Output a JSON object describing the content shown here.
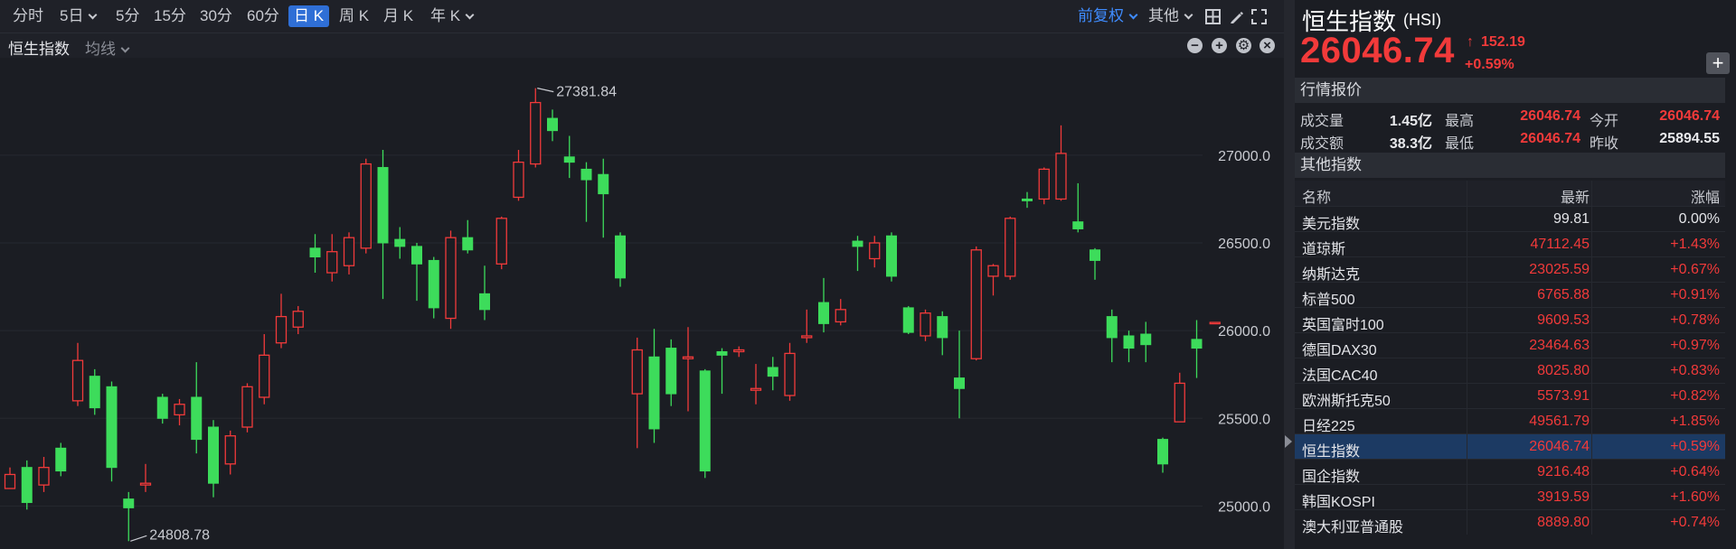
{
  "toolbar": {
    "periods": [
      "分时",
      "5日",
      "5分",
      "15分",
      "30分",
      "60分",
      "日 K",
      "周 K",
      "月 K",
      "年 K"
    ],
    "active_period": "日 K",
    "adjust": "前复权",
    "other": "其他"
  },
  "chart": {
    "title": "恒生指数",
    "ma_label": "均线"
  },
  "chart_data": {
    "type": "candlestick",
    "y_ticks": [
      "27000.0",
      "26500.0",
      "26000.0",
      "25500.0",
      "25000.0"
    ],
    "ylim": [
      24750,
      27550
    ],
    "high_annotation": "27381.84",
    "low_annotation": "24808.78",
    "last_close": 26046.74,
    "candles": [
      [
        25100,
        25180,
        25120,
        25220
      ],
      [
        25220,
        25020,
        24980,
        25260
      ],
      [
        25120,
        25220,
        25080,
        25280
      ],
      [
        25330,
        25200,
        25170,
        25360
      ],
      [
        25600,
        25830,
        25570,
        25930
      ],
      [
        25740,
        25560,
        25520,
        25780
      ],
      [
        25680,
        25220,
        25140,
        25710
      ],
      [
        25040,
        24990,
        24800,
        25080
      ],
      [
        25120,
        25130,
        25080,
        25240
      ],
      [
        25620,
        25500,
        25470,
        25640
      ],
      [
        25520,
        25580,
        25460,
        25610
      ],
      [
        25620,
        25380,
        25300,
        25820
      ],
      [
        25450,
        25130,
        25050,
        25490
      ],
      [
        25240,
        25400,
        25180,
        25430
      ],
      [
        25450,
        25680,
        25420,
        25700
      ],
      [
        25620,
        25860,
        25580,
        25980
      ],
      [
        25930,
        26080,
        25900,
        26210
      ],
      [
        26020,
        26110,
        25980,
        26140
      ],
      [
        26470,
        26420,
        26330,
        26550
      ],
      [
        26330,
        26450,
        26280,
        26550
      ],
      [
        26370,
        26530,
        26320,
        26560
      ],
      [
        26470,
        26950,
        26440,
        26980
      ],
      [
        26930,
        26500,
        26180,
        27030
      ],
      [
        26520,
        26480,
        26410,
        26590
      ],
      [
        26480,
        26380,
        26170,
        26500
      ],
      [
        26400,
        26130,
        26070,
        26420
      ],
      [
        26070,
        26530,
        26010,
        26570
      ],
      [
        26530,
        26460,
        26440,
        26630
      ],
      [
        26210,
        26120,
        26060,
        26370
      ],
      [
        26380,
        26640,
        26350,
        26650
      ],
      [
        26760,
        26960,
        26740,
        27030
      ],
      [
        26950,
        27300,
        26930,
        27382
      ],
      [
        27210,
        27140,
        27080,
        27260
      ],
      [
        26990,
        26960,
        26870,
        27110
      ],
      [
        26920,
        26860,
        26620,
        26960
      ],
      [
        26890,
        26780,
        26530,
        26980
      ],
      [
        26540,
        26300,
        26250,
        26560
      ],
      [
        25640,
        25890,
        25330,
        25960
      ],
      [
        25850,
        25440,
        25360,
        26010
      ],
      [
        25900,
        25640,
        25570,
        25950
      ],
      [
        25840,
        25850,
        25540,
        26020
      ],
      [
        25770,
        25200,
        25160,
        25780
      ],
      [
        25880,
        25860,
        25640,
        25900
      ],
      [
        25880,
        25890,
        25850,
        25910
      ],
      [
        25660,
        25670,
        25580,
        25810
      ],
      [
        25790,
        25740,
        25660,
        25850
      ],
      [
        25630,
        25870,
        25600,
        25930
      ],
      [
        25960,
        25970,
        25930,
        26120
      ],
      [
        26160,
        26040,
        25990,
        26300
      ],
      [
        26050,
        26120,
        26030,
        26180
      ],
      [
        26510,
        26480,
        26340,
        26540
      ],
      [
        26410,
        26500,
        26360,
        26540
      ],
      [
        26540,
        26310,
        26280,
        26560
      ],
      [
        26130,
        25990,
        25980,
        26140
      ],
      [
        25970,
        26100,
        25940,
        26120
      ],
      [
        26080,
        25960,
        25860,
        26110
      ],
      [
        25730,
        25670,
        25500,
        26000
      ],
      [
        25840,
        26460,
        25830,
        26480
      ],
      [
        26310,
        26370,
        26200,
        26380
      ],
      [
        26310,
        26640,
        26290,
        26650
      ],
      [
        26750,
        26740,
        26700,
        26790
      ],
      [
        26750,
        26920,
        26720,
        26930
      ],
      [
        26750,
        27010,
        26740,
        27170
      ],
      [
        26620,
        26580,
        26560,
        26840
      ],
      [
        26460,
        26400,
        26290,
        26470
      ],
      [
        26080,
        25960,
        25820,
        26120
      ],
      [
        25970,
        25900,
        25820,
        26000
      ],
      [
        25980,
        25920,
        25820,
        26050
      ],
      [
        25380,
        25240,
        25190,
        25390
      ],
      [
        25480,
        25700,
        25480,
        25760
      ],
      [
        25950,
        25900,
        25730,
        26060
      ],
      [
        26046.74,
        26046.74,
        26046.74,
        26046.74
      ]
    ]
  },
  "quote": {
    "name": "恒生指数",
    "code": "(HSI)",
    "price": "26046.74",
    "change": "152.19",
    "change_pct": "+0.59%",
    "section_title": "行情报价",
    "rows": [
      {
        "l1": "成交量",
        "v1": "1.45亿",
        "l2": "最高",
        "v2": "26046.74",
        "l3": "今开",
        "v3": "26046.74"
      },
      {
        "l1": "成交额",
        "v1": "38.3亿",
        "l2": "最低",
        "v2": "26046.74",
        "l3": "昨收",
        "v3": "25894.55"
      }
    ]
  },
  "others": {
    "section_title": "其他指数",
    "headers": {
      "name": "名称",
      "last": "最新",
      "pct": "涨幅"
    },
    "rows": [
      {
        "name": "美元指数",
        "last": "99.81",
        "pct": "0.00%",
        "dir": "flat"
      },
      {
        "name": "道琼斯",
        "last": "47112.45",
        "pct": "+1.43%",
        "dir": "up"
      },
      {
        "name": "纳斯达克",
        "last": "23025.59",
        "pct": "+0.67%",
        "dir": "up"
      },
      {
        "name": "标普500",
        "last": "6765.88",
        "pct": "+0.91%",
        "dir": "up"
      },
      {
        "name": "英国富时100",
        "last": "9609.53",
        "pct": "+0.78%",
        "dir": "up"
      },
      {
        "name": "德国DAX30",
        "last": "23464.63",
        "pct": "+0.97%",
        "dir": "up"
      },
      {
        "name": "法国CAC40",
        "last": "8025.80",
        "pct": "+0.83%",
        "dir": "up"
      },
      {
        "name": "欧洲斯托克50",
        "last": "5573.91",
        "pct": "+0.82%",
        "dir": "up"
      },
      {
        "name": "日经225",
        "last": "49561.79",
        "pct": "+1.85%",
        "dir": "up"
      },
      {
        "name": "恒生指数",
        "last": "26046.74",
        "pct": "+0.59%",
        "dir": "up",
        "selected": true
      },
      {
        "name": "国企指数",
        "last": "9216.48",
        "pct": "+0.64%",
        "dir": "up"
      },
      {
        "name": "韩国KOSPI",
        "last": "3919.59",
        "pct": "+1.60%",
        "dir": "up"
      },
      {
        "name": "澳大利亚普通股",
        "last": "8889.80",
        "pct": "+0.74%",
        "dir": "up"
      }
    ]
  },
  "colors": {
    "up": "#f23a3a",
    "down": "#3ddc5b",
    "selected_row": "#1c3a63",
    "accent": "#3f8cff"
  }
}
